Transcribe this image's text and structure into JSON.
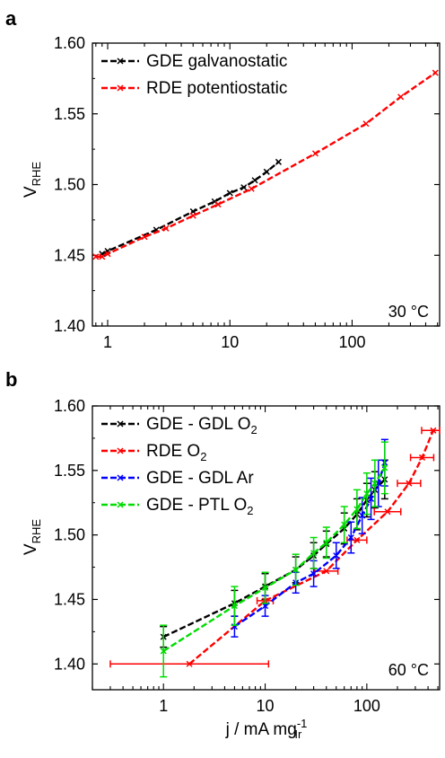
{
  "chart_data": [
    {
      "panel": "a",
      "type": "line",
      "x_scale": "log",
      "xlim": [
        0.75,
        520
      ],
      "ylim": [
        1.4,
        1.6
      ],
      "y_ticks": [
        "1.40",
        "1.45",
        "1.50",
        "1.55",
        "1.60"
      ],
      "x_ticks": [
        "1",
        "10",
        "100"
      ],
      "ylabel": "V",
      "ylabel_sub": "RHE",
      "xlabel": "",
      "annotation": "30 °C",
      "legend_position": "top-left",
      "series": [
        {
          "name": "GDE galvanostatic",
          "color": "#000000",
          "points": [
            [
              0.9,
              1.451
            ],
            [
              1.0,
              1.453
            ],
            [
              2.5,
              1.468
            ],
            [
              5.0,
              1.481
            ],
            [
              7.5,
              1.488
            ],
            [
              10,
              1.494
            ],
            [
              13,
              1.498
            ],
            [
              16,
              1.503
            ],
            [
              20,
              1.509
            ],
            [
              25,
              1.516
            ]
          ]
        },
        {
          "name": "RDE potentiostatic",
          "color": "#ff0000",
          "points": [
            [
              0.8,
              1.449
            ],
            [
              0.9,
              1.449
            ],
            [
              1.0,
              1.451
            ],
            [
              2.0,
              1.463
            ],
            [
              3.0,
              1.469
            ],
            [
              5.0,
              1.478
            ],
            [
              8.0,
              1.486
            ],
            [
              15,
              1.497
            ],
            [
              50,
              1.522
            ],
            [
              130,
              1.543
            ],
            [
              250,
              1.562
            ],
            [
              480,
              1.579
            ]
          ]
        }
      ]
    },
    {
      "panel": "b",
      "type": "line",
      "x_scale": "log",
      "xlim": [
        0.2,
        520
      ],
      "ylim": [
        1.38,
        1.6
      ],
      "y_ticks": [
        "1.40",
        "1.45",
        "1.50",
        "1.55",
        "1.60"
      ],
      "x_ticks": [
        "1",
        "10",
        "100"
      ],
      "ylabel": "V",
      "ylabel_sub": "RHE",
      "xlabel": "j / mA mg",
      "xlabel_sup": "-1",
      "xlabel_sub": "Ir",
      "annotation": "60 °C",
      "legend_position": "top-left",
      "series": [
        {
          "name": "GDE - GDL O",
          "name_sub": "2",
          "color": "#000000",
          "points": [
            [
              1,
              1.421,
              0.008
            ],
            [
              5,
              1.447,
              0.01
            ],
            [
              10,
              1.46,
              0.01
            ],
            [
              20,
              1.473,
              0.01
            ],
            [
              30,
              1.484,
              0.01
            ],
            [
              40,
              1.493,
              0.01
            ],
            [
              60,
              1.505,
              0.012
            ],
            [
              80,
              1.516,
              0.012
            ],
            [
              100,
              1.527,
              0.013
            ],
            [
              120,
              1.535,
              0.014
            ],
            [
              150,
              1.543,
              0.015
            ]
          ]
        },
        {
          "name": "RDE O",
          "name_sub": "2",
          "color": "#ff0000",
          "points": [
            [
              1.8,
              1.4
            ],
            [
              10,
              1.449
            ],
            [
              40,
              1.472
            ],
            [
              80,
              1.496
            ],
            [
              160,
              1.518
            ],
            [
              260,
              1.54
            ],
            [
              350,
              1.56
            ],
            [
              450,
              1.581
            ]
          ]
        },
        {
          "name": "GDE - GDL Ar",
          "color": "#0000ff",
          "points": [
            [
              5,
              1.429,
              0.008
            ],
            [
              10,
              1.445,
              0.008
            ],
            [
              20,
              1.463,
              0.008
            ],
            [
              30,
              1.47,
              0.01
            ],
            [
              50,
              1.484,
              0.01
            ],
            [
              70,
              1.498,
              0.012
            ],
            [
              90,
              1.515,
              0.014
            ],
            [
              110,
              1.528,
              0.016
            ],
            [
              130,
              1.54,
              0.018
            ],
            [
              150,
              1.556,
              0.018
            ]
          ]
        },
        {
          "name": "GDE - PTL O",
          "name_sub": "2",
          "color": "#00dd00",
          "points": [
            [
              1,
              1.41,
              0.02
            ],
            [
              5,
              1.445,
              0.015
            ],
            [
              10,
              1.459,
              0.012
            ],
            [
              20,
              1.473,
              0.012
            ],
            [
              30,
              1.486,
              0.012
            ],
            [
              40,
              1.494,
              0.012
            ],
            [
              60,
              1.508,
              0.014
            ],
            [
              80,
              1.52,
              0.015
            ],
            [
              100,
              1.532,
              0.016
            ],
            [
              120,
              1.54,
              0.018
            ],
            [
              150,
              1.552,
              0.02
            ]
          ]
        }
      ]
    }
  ]
}
